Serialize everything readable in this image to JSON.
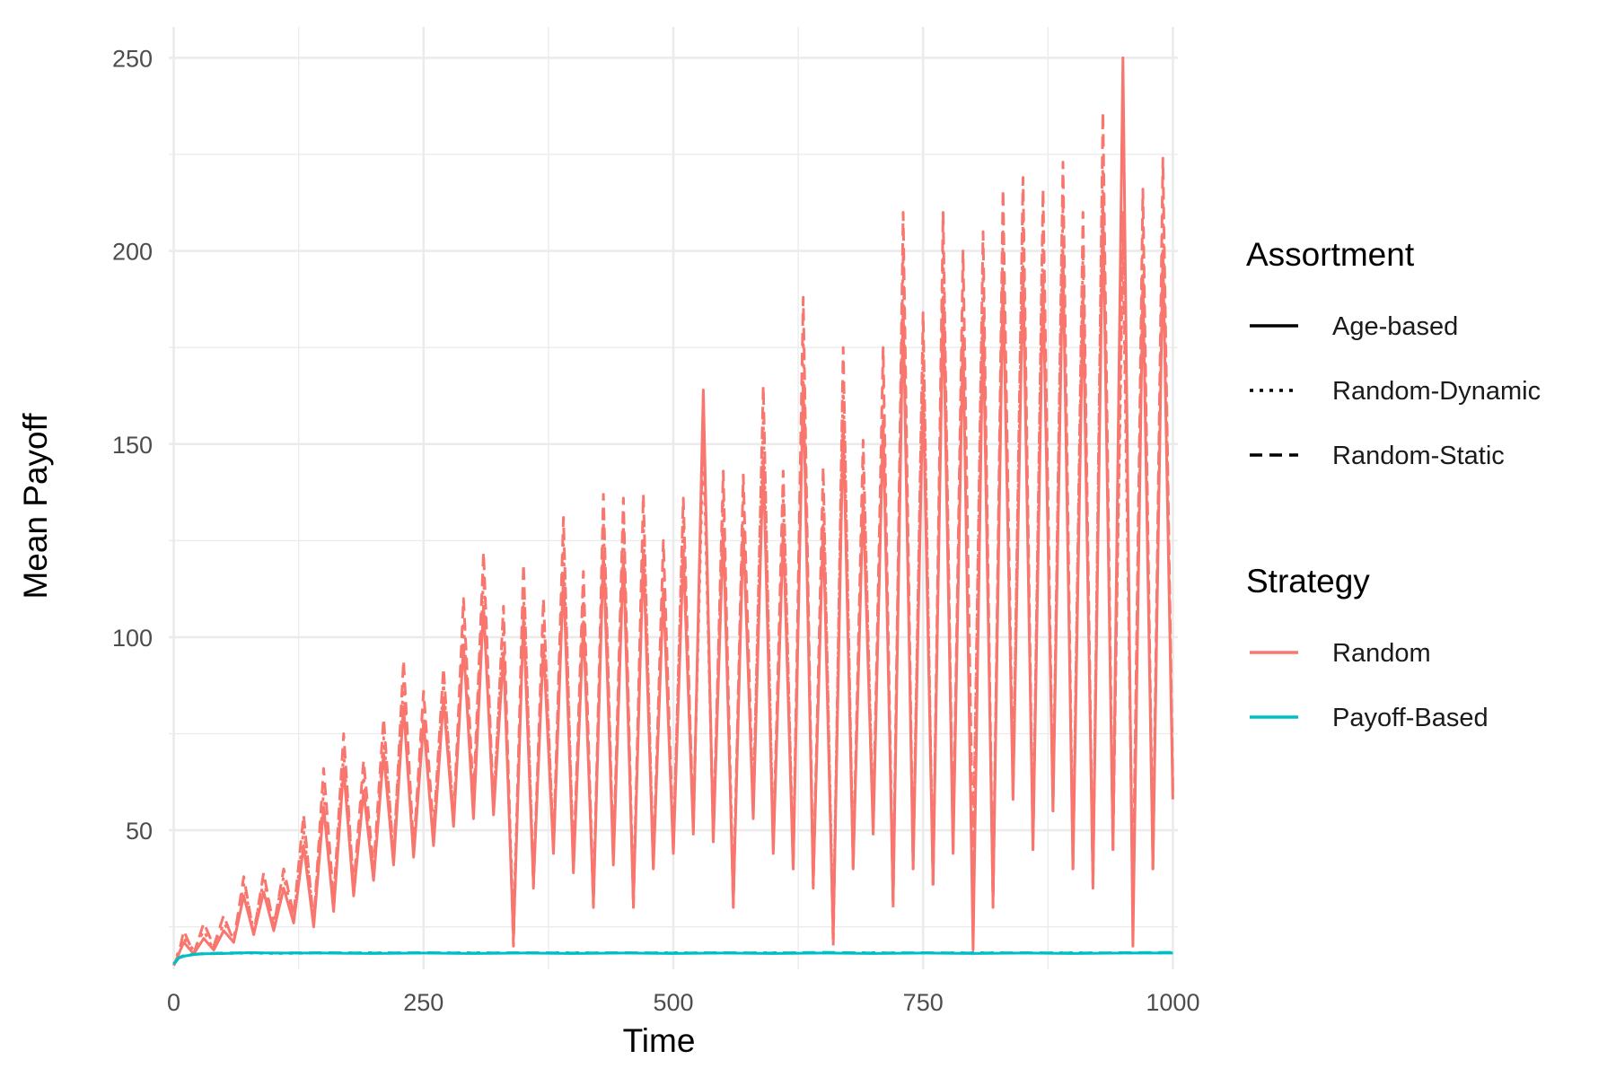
{
  "chart_data": {
    "type": "line",
    "xlabel": "Time",
    "ylabel": "Mean Payoff",
    "xlim": [
      -5,
      1005
    ],
    "ylim": [
      14,
      258
    ],
    "x_ticks": [
      0,
      250,
      500,
      750,
      1000
    ],
    "x_tick_labels": [
      "0",
      "250",
      "500",
      "750",
      "1000"
    ],
    "y_ticks": [
      50,
      100,
      150,
      200,
      250
    ],
    "y_tick_labels": [
      "50",
      "100",
      "150",
      "200",
      "250"
    ],
    "grid": true,
    "legend_position": "right",
    "legends": [
      {
        "title": "Assortment",
        "entries": [
          {
            "label": "Age-based",
            "dash": "solid"
          },
          {
            "label": "Random-Dynamic",
            "dash": "dotted"
          },
          {
            "label": "Random-Static",
            "dash": "dashed"
          }
        ]
      },
      {
        "title": "Strategy",
        "entries": [
          {
            "label": "Random",
            "color": "#F8766D"
          },
          {
            "label": "Payoff-Based",
            "color": "#00BFC4"
          }
        ]
      }
    ],
    "series": [
      {
        "name": "Random",
        "assortment": "Random-Static",
        "color": "#F8766D",
        "dash": "dashed",
        "x": [
          0,
          5,
          10,
          20,
          30,
          40,
          50,
          60,
          70,
          80,
          90,
          100,
          110,
          120,
          130,
          140,
          150,
          160,
          170,
          180,
          190,
          200,
          210,
          220,
          230,
          240,
          250,
          260,
          270,
          280,
          290,
          300,
          310,
          320,
          330,
          340,
          350,
          360,
          370,
          380,
          390,
          400,
          410,
          420,
          430,
          440,
          450,
          460,
          470,
          480,
          490,
          500,
          510,
          520,
          530,
          540,
          550,
          560,
          570,
          580,
          590,
          600,
          610,
          620,
          630,
          640,
          650,
          660,
          670,
          680,
          690,
          700,
          710,
          720,
          730,
          740,
          750,
          760,
          770,
          780,
          790,
          800,
          810,
          820,
          830,
          840,
          850,
          860,
          870,
          880,
          890,
          900,
          910,
          920,
          930,
          940,
          950,
          960,
          970,
          980,
          990,
          1000
        ],
        "y": [
          15,
          18,
          24,
          18,
          26,
          20,
          28,
          21,
          38,
          23,
          39,
          25,
          40,
          28,
          54,
          26,
          66,
          32,
          75,
          35,
          68,
          40,
          79,
          43,
          94,
          45,
          86,
          50,
          92,
          52,
          110,
          58,
          122,
          55,
          108,
          20,
          119,
          35,
          110,
          45,
          131,
          40,
          117,
          30,
          137,
          42,
          136,
          30,
          137,
          40,
          125,
          45,
          136,
          50,
          158,
          48,
          143,
          30,
          142,
          55,
          165,
          45,
          143,
          40,
          188,
          35,
          144,
          20,
          175,
          40,
          151,
          50,
          175,
          30,
          210,
          40,
          184,
          35,
          210,
          45,
          200,
          40,
          205,
          30,
          216,
          60,
          219,
          45,
          216,
          55,
          223,
          40,
          210,
          35,
          236,
          45,
          210,
          30,
          216,
          40,
          224,
          60
        ]
      },
      {
        "name": "Random",
        "assortment": "Random-Dynamic",
        "color": "#F8766D",
        "dash": "dotted",
        "x": [
          0,
          5,
          10,
          20,
          30,
          40,
          50,
          60,
          70,
          80,
          90,
          100,
          110,
          120,
          130,
          140,
          150,
          160,
          170,
          180,
          190,
          200,
          210,
          220,
          230,
          240,
          250,
          260,
          270,
          280,
          290,
          300,
          310,
          320,
          330,
          340,
          350,
          360,
          370,
          380,
          390,
          400,
          410,
          420,
          430,
          440,
          450,
          460,
          470,
          480,
          490,
          500,
          510,
          520,
          530,
          540,
          550,
          560,
          570,
          580,
          590,
          600,
          610,
          620,
          630,
          640,
          650,
          660,
          670,
          680,
          690,
          700,
          710,
          720,
          730,
          740,
          750,
          760,
          770,
          780,
          790,
          800,
          810,
          820,
          830,
          840,
          850,
          860,
          870,
          880,
          890,
          900,
          910,
          920,
          930,
          940,
          950,
          960,
          970,
          980,
          990,
          1000
        ],
        "y": [
          15,
          19,
          22,
          19,
          24,
          19,
          26,
          22,
          36,
          24,
          37,
          26,
          38,
          27,
          50,
          27,
          60,
          30,
          70,
          36,
          64,
          38,
          74,
          44,
          88,
          46,
          82,
          48,
          88,
          54,
          104,
          56,
          116,
          57,
          102,
          25,
          112,
          38,
          104,
          47,
          124,
          42,
          111,
          33,
          130,
          44,
          129,
          33,
          130,
          42,
          120,
          47,
          130,
          52,
          150,
          50,
          136,
          34,
          136,
          57,
          156,
          47,
          136,
          43,
          178,
          38,
          137,
          25,
          166,
          42,
          144,
          52,
          166,
          34,
          199,
          42,
          175,
          38,
          200,
          47,
          190,
          43,
          195,
          34,
          205,
          62,
          208,
          48,
          205,
          58,
          212,
          43,
          200,
          38,
          224,
          48,
          200,
          34,
          205,
          43,
          213,
          62
        ]
      },
      {
        "name": "Random",
        "assortment": "Age-based",
        "color": "#F8766D",
        "dash": "solid",
        "x": [
          0,
          5,
          10,
          20,
          30,
          40,
          50,
          60,
          70,
          80,
          90,
          100,
          110,
          120,
          130,
          140,
          150,
          160,
          170,
          180,
          190,
          200,
          210,
          220,
          230,
          240,
          250,
          260,
          270,
          280,
          290,
          300,
          310,
          320,
          330,
          340,
          350,
          360,
          370,
          380,
          390,
          400,
          410,
          420,
          430,
          440,
          450,
          460,
          470,
          480,
          490,
          500,
          510,
          520,
          530,
          540,
          550,
          560,
          570,
          580,
          590,
          600,
          610,
          620,
          630,
          640,
          650,
          660,
          670,
          680,
          690,
          700,
          710,
          720,
          730,
          740,
          750,
          760,
          770,
          780,
          790,
          800,
          810,
          820,
          830,
          840,
          850,
          860,
          870,
          880,
          890,
          900,
          910,
          920,
          930,
          940,
          950,
          960,
          970,
          980,
          990,
          1000
        ],
        "y": [
          15,
          18,
          21,
          18,
          22,
          19,
          24,
          21,
          33,
          23,
          34,
          24,
          35,
          26,
          46,
          25,
          56,
          29,
          66,
          33,
          60,
          37,
          70,
          41,
          82,
          43,
          78,
          46,
          84,
          51,
          98,
          53,
          108,
          54,
          96,
          22,
          105,
          36,
          98,
          44,
          116,
          39,
          104,
          31,
          122,
          41,
          121,
          31,
          122,
          40,
          112,
          44,
          122,
          49,
          164,
          47,
          128,
          31,
          128,
          53,
          146,
          44,
          128,
          40,
          166,
          36,
          129,
          22,
          156,
          40,
          136,
          49,
          156,
          31,
          186,
          40,
          165,
          36,
          188,
          44,
          178,
          19,
          183,
          31,
          193,
          58,
          196,
          45,
          193,
          55,
          200,
          40,
          188,
          36,
          212,
          45,
          250,
          20,
          193,
          40,
          200,
          58
        ]
      },
      {
        "name": "Payoff-Based",
        "assortment": "Random-Static",
        "color": "#00BFC4",
        "dash": "dashed",
        "x": [
          0,
          5,
          10,
          20,
          30,
          50,
          75,
          100,
          150,
          200,
          250,
          300,
          350,
          400,
          450,
          500,
          550,
          600,
          650,
          700,
          750,
          800,
          850,
          900,
          950,
          1000
        ],
        "y": [
          15.5,
          17.0,
          17.6,
          17.9,
          18.1,
          18.2,
          18.3,
          18.2,
          18.3,
          18.2,
          18.3,
          18.2,
          18.3,
          18.2,
          18.3,
          18.2,
          18.3,
          18.2,
          18.4,
          18.2,
          18.3,
          18.2,
          18.3,
          18.2,
          18.3,
          18.4
        ]
      },
      {
        "name": "Payoff-Based",
        "assortment": "Random-Dynamic",
        "color": "#00BFC4",
        "dash": "dotted",
        "x": [
          0,
          5,
          10,
          20,
          30,
          50,
          75,
          100,
          150,
          200,
          250,
          300,
          350,
          400,
          450,
          500,
          550,
          600,
          650,
          700,
          750,
          800,
          850,
          900,
          950,
          1000
        ],
        "y": [
          15.4,
          16.8,
          17.5,
          17.9,
          18.0,
          18.1,
          18.2,
          18.1,
          18.2,
          18.3,
          18.2,
          18.3,
          18.2,
          18.3,
          18.2,
          18.3,
          18.2,
          18.3,
          18.2,
          18.3,
          18.2,
          18.3,
          18.2,
          18.3,
          18.2,
          18.3
        ]
      },
      {
        "name": "Payoff-Based",
        "assortment": "Age-based",
        "color": "#00BFC4",
        "dash": "solid",
        "x": [
          0,
          5,
          10,
          20,
          30,
          50,
          75,
          100,
          150,
          200,
          250,
          300,
          350,
          400,
          450,
          500,
          550,
          600,
          650,
          700,
          750,
          800,
          850,
          900,
          950,
          1000
        ],
        "y": [
          15.3,
          16.9,
          17.4,
          17.8,
          18.0,
          18.1,
          18.3,
          18.2,
          18.2,
          18.1,
          18.2,
          18.1,
          18.2,
          18.1,
          18.2,
          18.1,
          18.2,
          18.1,
          18.2,
          18.1,
          18.2,
          18.1,
          18.2,
          18.1,
          18.2,
          18.2
        ]
      }
    ]
  }
}
